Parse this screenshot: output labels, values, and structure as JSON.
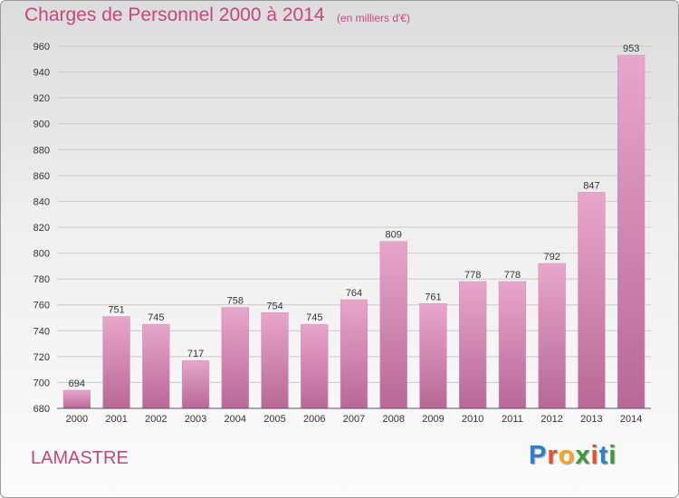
{
  "title": "Charges de Personnel 2000 à 2014",
  "subtitle": "(en milliers d'€)",
  "commune": "LAMASTRE",
  "logo": {
    "letters": [
      "P",
      "r",
      "o",
      "x",
      "i",
      "t",
      "i"
    ],
    "colors": [
      "#2f7fd0",
      "#e64f2d",
      "#f3a51f",
      "#3c9b36",
      "#e64f2d",
      "#2f7fd0",
      "#3c9b36"
    ]
  },
  "colors": {
    "accent": "#c4477b",
    "bar_top": "#e8a6cb",
    "bar_bottom": "#b86896"
  },
  "chart_data": {
    "type": "bar",
    "title": "Charges de Personnel 2000 à 2014",
    "subtitle": "(en milliers d'€)",
    "categories": [
      "2000",
      "2001",
      "2002",
      "2003",
      "2004",
      "2005",
      "2006",
      "2007",
      "2008",
      "2009",
      "2010",
      "2011",
      "2012",
      "2013",
      "2014"
    ],
    "values": [
      694,
      751,
      745,
      717,
      758,
      754,
      745,
      764,
      809,
      761,
      778,
      778,
      792,
      847,
      953
    ],
    "ylim": [
      680,
      960
    ],
    "yticks": [
      680,
      700,
      720,
      740,
      760,
      780,
      800,
      820,
      840,
      860,
      880,
      900,
      920,
      940,
      960
    ],
    "grid": true,
    "legend": "none"
  }
}
